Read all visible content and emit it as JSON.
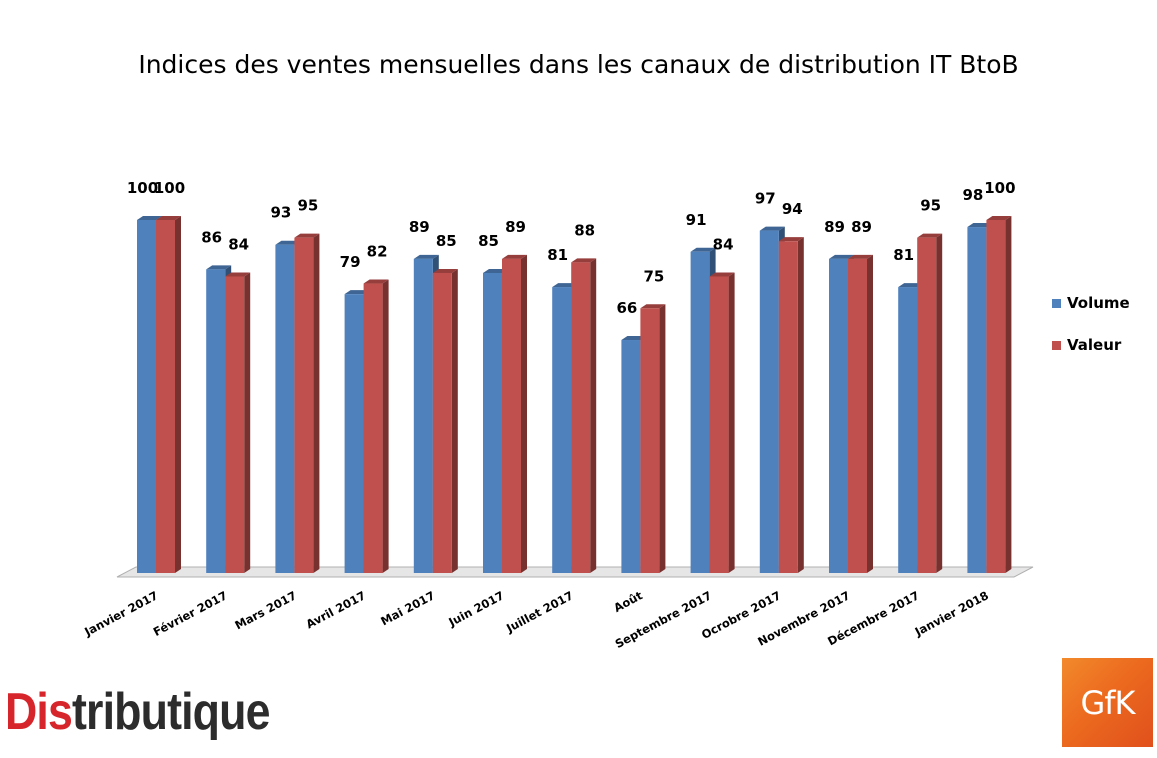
{
  "chart_data": {
    "type": "bar",
    "title": "Indices des ventes mensuelles dans les canaux de distribution IT BtoB",
    "categories": [
      "Janvier 2017",
      "Février 2017",
      "Mars 2017",
      "Avril 2017",
      "Mai 2017",
      "Juin 2017",
      "Juillet 2017",
      "Août",
      "Septembre 2017",
      "Ocrobre 2017",
      "Novembre 2017",
      "Décembre 2017",
      "Janvier 2018"
    ],
    "series": [
      {
        "name": "Volume",
        "color": "#4f81bd",
        "values": [
          100,
          86,
          93,
          79,
          89,
          85,
          81,
          66,
          91,
          97,
          89,
          81,
          98
        ]
      },
      {
        "name": "Valeur",
        "color": "#c0504d",
        "values": [
          100,
          84,
          95,
          82,
          85,
          89,
          88,
          75,
          84,
          94,
          89,
          95,
          100
        ]
      }
    ],
    "data_labels": [
      [
        "100",
        "86",
        "93",
        "79",
        "89",
        "85",
        "81",
        "66",
        "91",
        "97",
        "89",
        "81",
        "98"
      ],
      [
        "100",
        "84",
        "95",
        "82",
        "85",
        "89",
        "88",
        "75",
        "84",
        "94",
        "89",
        "95",
        "100"
      ]
    ],
    "ylim": [
      0,
      100
    ],
    "grid": false,
    "legend_position": "right",
    "style": "3d-clustered-columns"
  },
  "logos": {
    "distributique": {
      "red_part": "Dis",
      "dark_part": "tributique"
    },
    "gfk": "GfK"
  }
}
